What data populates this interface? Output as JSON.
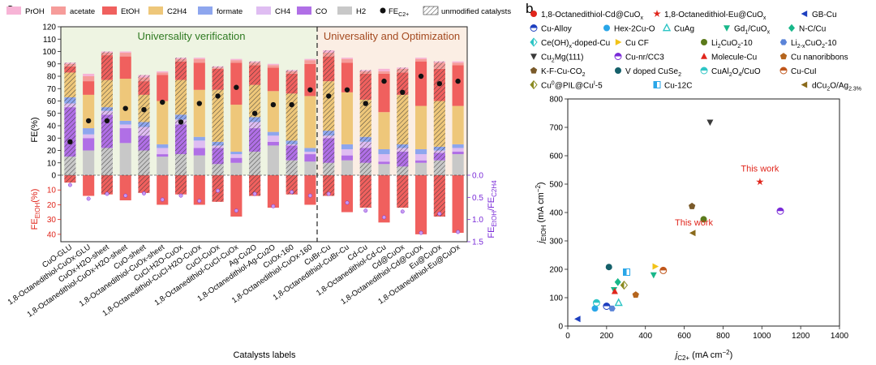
{
  "panel_labels": {
    "a": "a",
    "b": "b"
  },
  "chart_data": [
    {
      "type": "bar",
      "stacked": true,
      "region_left_label": "Universality verification",
      "region_right_label": "Universality and Optimization",
      "xlabel": "Catalysts labels",
      "ylabel": "FE(%)",
      "ylabel_lower": "FE",
      "ylabel_lower_sub": "EtOH",
      "ylabel_lower_unit": "(%)",
      "ylabel_right": "FE",
      "ylabel_right_sub1": "EtOH",
      "ylabel_right_sub2": "C2H4",
      "ylim": [
        0,
        120
      ],
      "lower_lim": [
        0,
        40
      ],
      "right_lim": [
        0,
        1.5
      ],
      "y_ticks": [
        "0",
        "10",
        "20",
        "30",
        "40",
        "50",
        "60",
        "70",
        "80",
        "90",
        "100",
        "110",
        "120"
      ],
      "lower_ticks": [
        "10",
        "20",
        "30",
        "40"
      ],
      "right_ticks": [
        "0.0",
        "0.5",
        "1.0",
        "1.5"
      ],
      "legend": [
        {
          "key": "propanol",
          "label": "PrOH",
          "color": "#f7b4d6"
        },
        {
          "key": "acetate",
          "label": "acetate",
          "color": "#f69c9a"
        },
        {
          "key": "ethanol",
          "label": "EtOH",
          "color": "#f0605e"
        },
        {
          "key": "ethylene",
          "label": "C2H4",
          "sub": "",
          "color": "#eec77a"
        },
        {
          "key": "formate",
          "label": "formate",
          "color": "#8ea6ee"
        },
        {
          "key": "methane",
          "label": "CH4",
          "color": "#dfbdf2"
        },
        {
          "key": "co",
          "label": "CO",
          "color": "#b06fe6"
        },
        {
          "key": "hydrogen",
          "label": "H2",
          "color": "#c8c8c8"
        },
        {
          "key": "fe_c2",
          "label": "FE",
          "sub": "C2+",
          "color": "#222222"
        },
        {
          "key": "unmodified",
          "label": "unmodified catalysts",
          "color": "#ffffff"
        }
      ],
      "categories": [
        "CuO-GLU",
        "1,8-Octanedithiol-CuOx-GLU",
        "CuOx-H2O-sheet",
        "1,8-Octanedithiol-CuOx-H2O-sheet",
        "CuO-sheet",
        "1,8-Octanedithiol-CuOx-sheet",
        "CuCl-H2O-CuOx",
        "1,8-Octanedithiol-CuCl-H2O-CuOx",
        "CuCl-CuOx",
        "1,8-Octanedithiol-CuCl-CuOx",
        "Ag-Cu2O",
        "1,8-Octanedithiol-Ag-Cu2O",
        "CuOx-160",
        "1,8-Octanedithiol-CuOx-160",
        "CuBr-Cu",
        "1,8-Octanedithiol-CuBr-Cu",
        "Cd-Cu",
        "1,8-Octanedithiol-Cd-Cu",
        "Cd@CuOx",
        "1,8-Octanedithiol-Cd@CuOx",
        "Eu@CuOx",
        "1,8-Octanedithiol-Eu@CuOx"
      ],
      "unmodified": [
        true,
        false,
        true,
        false,
        true,
        false,
        true,
        false,
        true,
        false,
        true,
        false,
        true,
        false,
        true,
        false,
        true,
        false,
        true,
        false,
        true,
        false
      ],
      "series": [
        {
          "key": "hydrogen",
          "values": [
            15,
            20,
            22,
            26,
            20,
            15,
            17,
            16,
            9,
            10,
            19,
            24,
            12,
            11,
            10,
            12,
            10,
            9,
            7,
            10,
            12,
            17
          ]
        },
        {
          "key": "co",
          "values": [
            40,
            10,
            27,
            12,
            12,
            2,
            24,
            6,
            13,
            4,
            19,
            3,
            12,
            6,
            20,
            4,
            12,
            2,
            12,
            2,
            6,
            2
          ]
        },
        {
          "key": "methane",
          "values": [
            3,
            3,
            3,
            3,
            7,
            5,
            4,
            6,
            2,
            3,
            5,
            5,
            1,
            2,
            2,
            5,
            5,
            6,
            3,
            5,
            2,
            3
          ]
        },
        {
          "key": "formate",
          "values": [
            5,
            5,
            3,
            3,
            4,
            3,
            4,
            3,
            3,
            2,
            4,
            3,
            3,
            3,
            4,
            4,
            4,
            4,
            3,
            4,
            3,
            3
          ]
        },
        {
          "key": "ethylene",
          "values": [
            20,
            27,
            22,
            34,
            22,
            35,
            28,
            38,
            42,
            38,
            26,
            33,
            38,
            42,
            40,
            42,
            30,
            30,
            40,
            35,
            37,
            31
          ]
        },
        {
          "key": "ethanol",
          "values": [
            5,
            11,
            20,
            18,
            11,
            21,
            15,
            22,
            17,
            34,
            16,
            19,
            16,
            26,
            20,
            24,
            21,
            31,
            18,
            36,
            26,
            33
          ]
        },
        {
          "key": "acetate",
          "values": [
            2,
            4,
            2,
            3,
            3,
            2,
            2,
            3,
            1,
            2,
            2,
            2,
            2,
            3,
            3,
            3,
            2,
            2,
            3,
            2,
            5,
            2
          ]
        },
        {
          "key": "propanol",
          "values": [
            1,
            2,
            1,
            1,
            2,
            1,
            1,
            1,
            1,
            1,
            1,
            1,
            1,
            1,
            2,
            1,
            1,
            2,
            1,
            1,
            1,
            1
          ]
        }
      ],
      "fe_c2_plus": [
        27,
        44,
        44,
        54,
        53,
        59,
        43,
        58,
        64,
        71,
        50,
        57,
        57,
        69,
        64,
        69,
        58,
        76,
        67,
        80,
        74,
        76
      ],
      "fe_ethanol_lower": [
        5,
        14,
        13,
        17,
        12,
        20,
        13,
        20,
        18,
        28,
        14,
        22,
        13,
        20,
        14,
        25,
        22,
        32,
        22,
        40,
        28,
        39
      ],
      "ratio_etoh_c2h4": [
        0.22,
        0.53,
        0.42,
        0.46,
        0.41,
        0.55,
        0.46,
        0.58,
        0.35,
        0.8,
        0.42,
        0.7,
        0.38,
        0.46,
        0.42,
        0.62,
        0.8,
        0.95,
        0.82,
        1.3,
        0.87,
        1.28
      ]
    },
    {
      "type": "scatter",
      "xlabel": "j",
      "xlabel_sub": "C2+",
      "xlabel_unit": " (mA cm",
      "ylabel": "j",
      "ylabel_sub": "EtOH",
      "ylabel_unit": " (mA cm",
      "xlim": [
        0,
        1400
      ],
      "ylim": [
        0,
        800
      ],
      "x_ticks": [
        "0",
        "200",
        "400",
        "600",
        "800",
        "1000",
        "1200",
        "1400"
      ],
      "y_ticks": [
        "0",
        "100",
        "200",
        "300",
        "400",
        "500",
        "600",
        "700",
        "800"
      ],
      "annotations": [
        {
          "text": "This work",
          "x": 990,
          "y": 545,
          "color": "#e0251b"
        },
        {
          "text": "This work",
          "x": 650,
          "y": 355,
          "color": "#e0251b"
        }
      ],
      "legend_rows": [
        [
          {
            "label": "1,8-Octanedithiol-Cd@CuO",
            "sub": "x",
            "marker": "circle",
            "color": "#e0251b"
          },
          {
            "label": "1,8-Octanedithiol-Eu@CuO",
            "sub": "x",
            "marker": "star",
            "color": "#e0251b"
          },
          {
            "label": "GB-Cu",
            "marker": "tri-left",
            "color": "#1d3fbf"
          }
        ],
        [
          {
            "label": "Cu-Alloy",
            "marker": "half-circle",
            "color": "#1d3fbf"
          },
          {
            "label": "Hex-2Cu-O",
            "marker": "circle",
            "color": "#29a6e8"
          },
          {
            "label": "CuAg",
            "marker": "tri-up-open",
            "color": "#2ec5c5"
          },
          {
            "label": "Gd",
            "sub": "1",
            "label2": "/CuO",
            "sub2": "x",
            "marker": "tri-down",
            "color": "#18b78a"
          },
          {
            "label": "N-C/Cu",
            "marker": "diamond",
            "color": "#18b78a"
          }
        ],
        [
          {
            "label": "Ce(OH)",
            "sub": "x",
            "label2": "-doped-Cu",
            "marker": "half-diamond",
            "color": "#2ec5c5"
          },
          {
            "label": "Cu CF",
            "marker": "tri-right",
            "color": "#f2c318"
          },
          {
            "label": "Li",
            "sub": "2",
            "label2": "CuO",
            "sub2": "2",
            "label3": "-10",
            "marker": "circle",
            "color": "#5b7a1b"
          },
          {
            "label": "Li",
            "sub": "2-x",
            "label2": "CuO",
            "sub2": "2",
            "label3": "-10",
            "marker": "hexagon",
            "color": "#5b84d8"
          }
        ],
        [
          {
            "label": "Cu",
            "sub": "2",
            "label2": "Mg(111)",
            "marker": "tri-down",
            "color": "#3a3a3a"
          },
          {
            "label": "Cu-nr/CC3",
            "marker": "half-circle",
            "color": "#7a2bd8"
          },
          {
            "label": "Molecule-Cu",
            "marker": "tri-up",
            "color": "#e0251b"
          },
          {
            "label": "Cu nanoribbons",
            "marker": "pentagon",
            "color": "#b5651d"
          }
        ],
        [
          {
            "label": "K-F-Cu-CO",
            "sub": "2",
            "marker": "pentagon",
            "color": "#7a5a2a"
          },
          {
            "label": "V doped CuSe",
            "sub": "2",
            "marker": "circle",
            "color": "#15606a"
          },
          {
            "label": "CuAl",
            "sub": "2",
            "label2": "O",
            "sub2": "4",
            "label3": "/CuO",
            "marker": "half-circle",
            "color": "#2ec5c5"
          },
          {
            "label": "Cu-CuI",
            "marker": "half-circle",
            "color": "#c0561b"
          }
        ],
        [
          {
            "label": "Cu",
            "sup": "0",
            "label2": "@PIL@Cu",
            "sup2": "I",
            "label3": "-5",
            "marker": "half-diamond",
            "color": "#8a8a20"
          },
          {
            "label": "Cu-12C",
            "marker": "half-square",
            "color": "#29a6e8"
          },
          {
            "label": "dCu",
            "sub": "2",
            "label2": "O/Ag",
            "sub2": "2.3%",
            "marker": "tri-left",
            "color": "#8a6a1b"
          }
        ]
      ],
      "points": [
        {
          "x": 1095,
          "y": 405,
          "marker": "half-circle",
          "color": "#7a2bd8"
        },
        {
          "x": 990,
          "y": 508,
          "marker": "star",
          "color": "#e0251b"
        },
        {
          "x": 733,
          "y": 718,
          "marker": "tri-down",
          "color": "#3a3a3a"
        },
        {
          "x": 640,
          "y": 422,
          "marker": "pentagon",
          "color": "#7a5a2a"
        },
        {
          "x": 700,
          "y": 376,
          "marker": "circle",
          "color": "#5b7a1b"
        },
        {
          "x": 645,
          "y": 328,
          "marker": "tri-left",
          "color": "#8a6a1b"
        },
        {
          "x": 52,
          "y": 25,
          "marker": "tri-left",
          "color": "#1d3fbf"
        },
        {
          "x": 140,
          "y": 62,
          "marker": "circle",
          "color": "#29a6e8"
        },
        {
          "x": 148,
          "y": 82,
          "marker": "half-circle",
          "color": "#2ec5c5"
        },
        {
          "x": 200,
          "y": 70,
          "marker": "half-circle",
          "color": "#1d3fbf"
        },
        {
          "x": 228,
          "y": 62,
          "marker": "hexagon",
          "color": "#5b84d8"
        },
        {
          "x": 212,
          "y": 208,
          "marker": "circle",
          "color": "#15606a"
        },
        {
          "x": 238,
          "y": 128,
          "marker": "tri-down",
          "color": "#18b78a"
        },
        {
          "x": 242,
          "y": 122,
          "marker": "tri-up",
          "color": "#e0251b"
        },
        {
          "x": 258,
          "y": 155,
          "marker": "diamond",
          "color": "#18b78a"
        },
        {
          "x": 262,
          "y": 82,
          "marker": "tri-up-open",
          "color": "#2ec5c5"
        },
        {
          "x": 290,
          "y": 144,
          "marker": "half-diamond",
          "color": "#8a8a20"
        },
        {
          "x": 303,
          "y": 190,
          "marker": "half-square",
          "color": "#29a6e8"
        },
        {
          "x": 350,
          "y": 110,
          "marker": "pentagon",
          "color": "#b5651d"
        },
        {
          "x": 442,
          "y": 180,
          "marker": "tri-down",
          "color": "#18b78a"
        },
        {
          "x": 450,
          "y": 210,
          "marker": "tri-right",
          "color": "#f2c318"
        },
        {
          "x": 492,
          "y": 196,
          "marker": "half-circle",
          "color": "#c0561b"
        }
      ]
    }
  ]
}
